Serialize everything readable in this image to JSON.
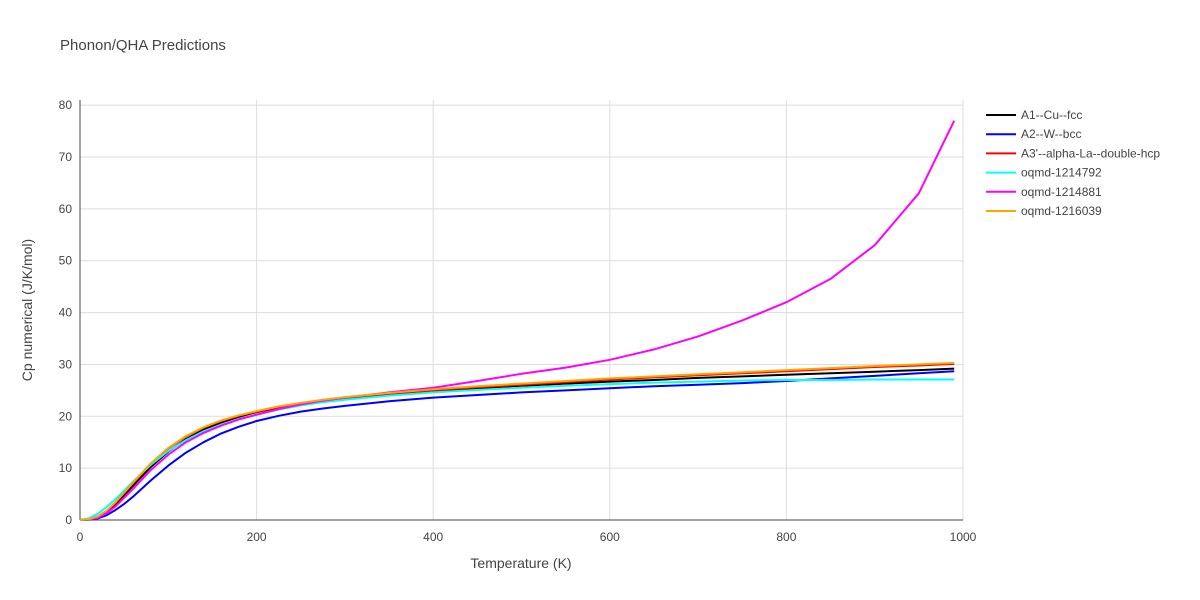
{
  "chart_data": {
    "type": "line",
    "title": "Phonon/QHA Predictions",
    "xlabel": "Temperature (K)",
    "ylabel": "Cp numerical (J/K/mol)",
    "xlim": [
      0,
      1000
    ],
    "ylim": [
      0,
      81
    ],
    "xticks": [
      0,
      200,
      400,
      600,
      800,
      1000
    ],
    "yticks": [
      0,
      10,
      20,
      30,
      40,
      50,
      60,
      70,
      80
    ],
    "grid": true,
    "legend_position": "top-right",
    "x": [
      0,
      10,
      20,
      30,
      40,
      50,
      60,
      80,
      100,
      120,
      140,
      160,
      180,
      200,
      225,
      250,
      275,
      300,
      350,
      400,
      450,
      500,
      550,
      600,
      650,
      700,
      750,
      800,
      850,
      900,
      950,
      990
    ],
    "series": [
      {
        "name": "A1--Cu--fcc",
        "color": "#000000",
        "values": [
          0,
          0.1,
          0.5,
          1.5,
          3.0,
          4.8,
          6.6,
          10.2,
          13.2,
          15.6,
          17.4,
          18.8,
          19.9,
          20.8,
          21.7,
          22.4,
          23.0,
          23.5,
          24.3,
          24.9,
          25.4,
          25.9,
          26.3,
          26.7,
          27.0,
          27.4,
          27.7,
          28.0,
          28.3,
          28.6,
          28.9,
          29.2
        ]
      },
      {
        "name": "A2--W--bcc",
        "color": "#0000ff",
        "values": [
          0,
          0.05,
          0.3,
          0.9,
          1.9,
          3.1,
          4.5,
          7.6,
          10.5,
          13.0,
          15.0,
          16.7,
          18.0,
          19.1,
          20.1,
          20.9,
          21.5,
          22.0,
          22.9,
          23.6,
          24.1,
          24.6,
          25.0,
          25.4,
          25.8,
          26.1,
          26.4,
          26.8,
          27.3,
          27.8,
          28.3,
          28.7
        ]
      },
      {
        "name": "A3'--alpha-La--double-hcp",
        "color": "#ff0000",
        "values": [
          0,
          0.15,
          0.6,
          1.7,
          3.3,
          5.2,
          7.1,
          10.8,
          13.8,
          16.1,
          17.8,
          19.1,
          20.1,
          20.9,
          21.8,
          22.5,
          23.1,
          23.6,
          24.4,
          25.0,
          25.6,
          26.1,
          26.6,
          27.1,
          27.5,
          27.9,
          28.3,
          28.7,
          29.1,
          29.5,
          29.8,
          30.1
        ]
      },
      {
        "name": "oqmd-1214792",
        "color": "#00ffff",
        "values": [
          0,
          0.3,
          1.2,
          2.5,
          4.0,
          5.7,
          7.4,
          10.6,
          13.3,
          15.4,
          17.1,
          18.4,
          19.5,
          20.3,
          21.3,
          22.1,
          22.7,
          23.2,
          24.0,
          24.6,
          25.1,
          25.5,
          25.9,
          26.2,
          26.5,
          26.7,
          26.9,
          27.0,
          27.0,
          27.1,
          27.1,
          27.1
        ]
      },
      {
        "name": "oqmd-1214881",
        "color": "#ff00ff",
        "values": [
          0,
          0.1,
          0.4,
          1.3,
          2.6,
          4.3,
          6.0,
          9.6,
          12.6,
          15.0,
          16.8,
          18.2,
          19.4,
          20.3,
          21.4,
          22.3,
          23.0,
          23.6,
          24.6,
          25.5,
          26.8,
          28.2,
          29.4,
          30.9,
          32.9,
          35.4,
          38.5,
          42.0,
          46.5,
          53.0,
          63.0,
          77.0
        ]
      },
      {
        "name": "oqmd-1216039",
        "color": "#ffa500",
        "values": [
          0,
          0.15,
          0.7,
          1.8,
          3.4,
          5.3,
          7.2,
          10.9,
          13.9,
          16.2,
          17.9,
          19.2,
          20.2,
          21.0,
          21.9,
          22.6,
          23.2,
          23.7,
          24.5,
          25.2,
          25.8,
          26.3,
          26.8,
          27.3,
          27.7,
          28.1,
          28.5,
          28.9,
          29.3,
          29.7,
          30.0,
          30.3
        ]
      }
    ]
  }
}
